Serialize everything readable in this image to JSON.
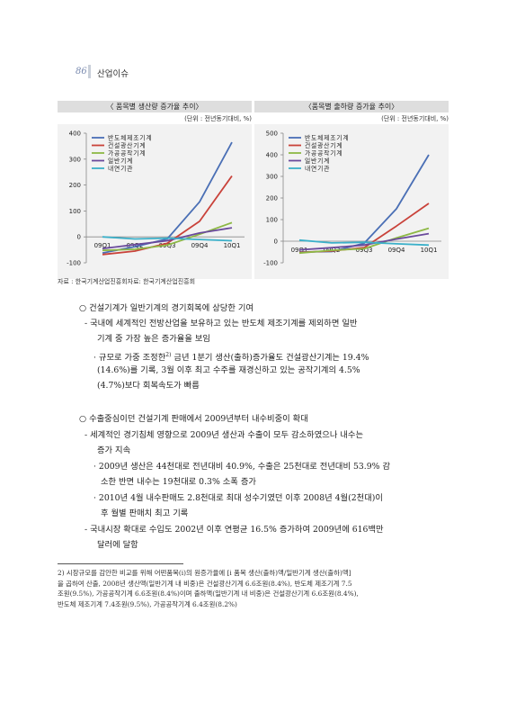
{
  "header": {
    "page_number": "86",
    "section": "산업이슈"
  },
  "charts": [
    {
      "title": "〈 품목별 생산량 증가율 추이〉",
      "unit": "(단위 : 전년동기대비, %)",
      "chart_data": {
        "type": "line",
        "categories": [
          "09Q1",
          "09Q2",
          "09Q3",
          "09Q4",
          "10Q1"
        ],
        "ylim": [
          -100,
          400
        ],
        "yticks": [
          -100,
          0,
          100,
          200,
          300,
          400
        ],
        "ytick_labels": [
          "-100",
          "0",
          "100",
          "200",
          "300",
          "400"
        ],
        "legend_position": "top-left",
        "grid": false,
        "series": [
          {
            "name": "반도체제조기계",
            "color": "#4a6fb5",
            "values": [
              -62,
              -38,
              -8,
              135,
              365
            ]
          },
          {
            "name": "건설광산기계",
            "color": "#c9423a",
            "values": [
              -68,
              -55,
              -25,
              60,
              235
            ]
          },
          {
            "name": "가공공작기계",
            "color": "#8db845",
            "values": [
              -52,
              -48,
              -32,
              10,
              55
            ]
          },
          {
            "name": "일반기계",
            "color": "#6a4a9c",
            "values": [
              -45,
              -30,
              -15,
              15,
              35
            ]
          },
          {
            "name": "내연기관",
            "color": "#3bb0c9",
            "values": [
              0,
              -8,
              -5,
              -10,
              -15
            ]
          }
        ]
      }
    },
    {
      "title": "〈품목별 출하량 증가율 추이〉",
      "unit": "(단위 : 전년동기대비, %)",
      "chart_data": {
        "type": "line",
        "categories": [
          "09Q1",
          "09Q2",
          "09Q3",
          "09Q4",
          "10Q1"
        ],
        "ylim": [
          -100,
          500
        ],
        "yticks": [
          -100,
          0,
          100,
          200,
          300,
          400,
          500
        ],
        "ytick_labels": [
          "-100",
          "0",
          "100",
          "200",
          "300",
          "400",
          "500"
        ],
        "legend_position": "top-left",
        "grid": false,
        "series": [
          {
            "name": "반도체제조기계",
            "color": "#4a6fb5",
            "values": [
              -50,
              -48,
              -10,
              150,
              400
            ]
          },
          {
            "name": "건설광산기계",
            "color": "#c9423a",
            "values": [
              -52,
              -45,
              -30,
              70,
              175
            ]
          },
          {
            "name": "가공공작기계",
            "color": "#8db845",
            "values": [
              -55,
              -42,
              -35,
              15,
              60
            ]
          },
          {
            "name": "일반기계",
            "color": "#6a4a9c",
            "values": [
              -40,
              -30,
              -18,
              10,
              35
            ]
          },
          {
            "name": "내연기관",
            "color": "#3bb0c9",
            "values": [
              5,
              -8,
              -5,
              -12,
              -18
            ]
          }
        ]
      }
    }
  ],
  "source": "자료 : 한국기계산업진흥회자료: 한국기계산업진흥회",
  "body": {
    "s1_heading": "○ 건설기계가 일반기계의 경기회복에 상당한 기여",
    "s1_dash1_l1": "- 국내에 세계적인 전방산업을 보유하고 있는 반도체 제조기계를 제외하면 일반",
    "s1_dash1_l2": "기계 중 가장 높은 증가율을 보임",
    "s1_b1_l1": "· 규모로 가중 조정한",
    "s1_b1_sup": "2)",
    "s1_b1_l1b": "금년 1분기 생산(출하)증가율도 건설광산기계는 19.4%",
    "s1_b1_l2": "(14.6%)를 기록, 3월 이후 최고 수주를 재경신하고 있는 공작기계의 4.5%",
    "s1_b1_l3": "(4.7%)보다 회복속도가 빠름",
    "s2_heading": "○ 수출중심이던 건설기계 판매에서 2009년부터 내수비중이 확대",
    "s2_dash1_l1": "- 세계적인 경기침체 영향으로 2009년 생산과 수출이 모두 감소하였으나 내수는",
    "s2_dash1_l2": "증가 지속",
    "s2_b1_l1": "· 2009년 생산은 44천대로 전년대비 40.9%, 수출은 25천대로 전년대비 53.9% 감",
    "s2_b1_l2": "소한 반면 내수는 19천대로 0.3% 소폭 증가",
    "s2_b2_l1": "· 2010년 4월 내수판매도 2.8천대로 최대 성수기였던 이후 2008년 4월(2천대)이",
    "s2_b2_l2": "후 월별 판매치 최고 기록",
    "s2_dash2_l1": "- 국내시장 확대로 수입도 2002년 이후 연평균 16.5% 증가하여 2009년에 616백만",
    "s2_dash2_l2": "달러에 달함"
  },
  "footnote": {
    "l1": "2) 시장규모를 감안한 비교를 위해 어떤품목(i)의 원증가율에 [i 품목 생산(출하)액/일반기계 생산(출하)액]",
    "l2": "을 곱하여 산출, 2008년 생산액(일반기계 내 비중)은 건설광산기계 6.6조원(8.4%), 반도체 제조기계 7.5",
    "l3": "조원(9.5%), 가공공작기계 6.6조원(8.4%)이며 출하액(일반기계 내 비중)은 건설광산기계 6.6조원(8.4%),",
    "l4": "반도체 제조기계 7.4조원(9.5%), 가공공작기계 6.4조원(8.2%)"
  }
}
